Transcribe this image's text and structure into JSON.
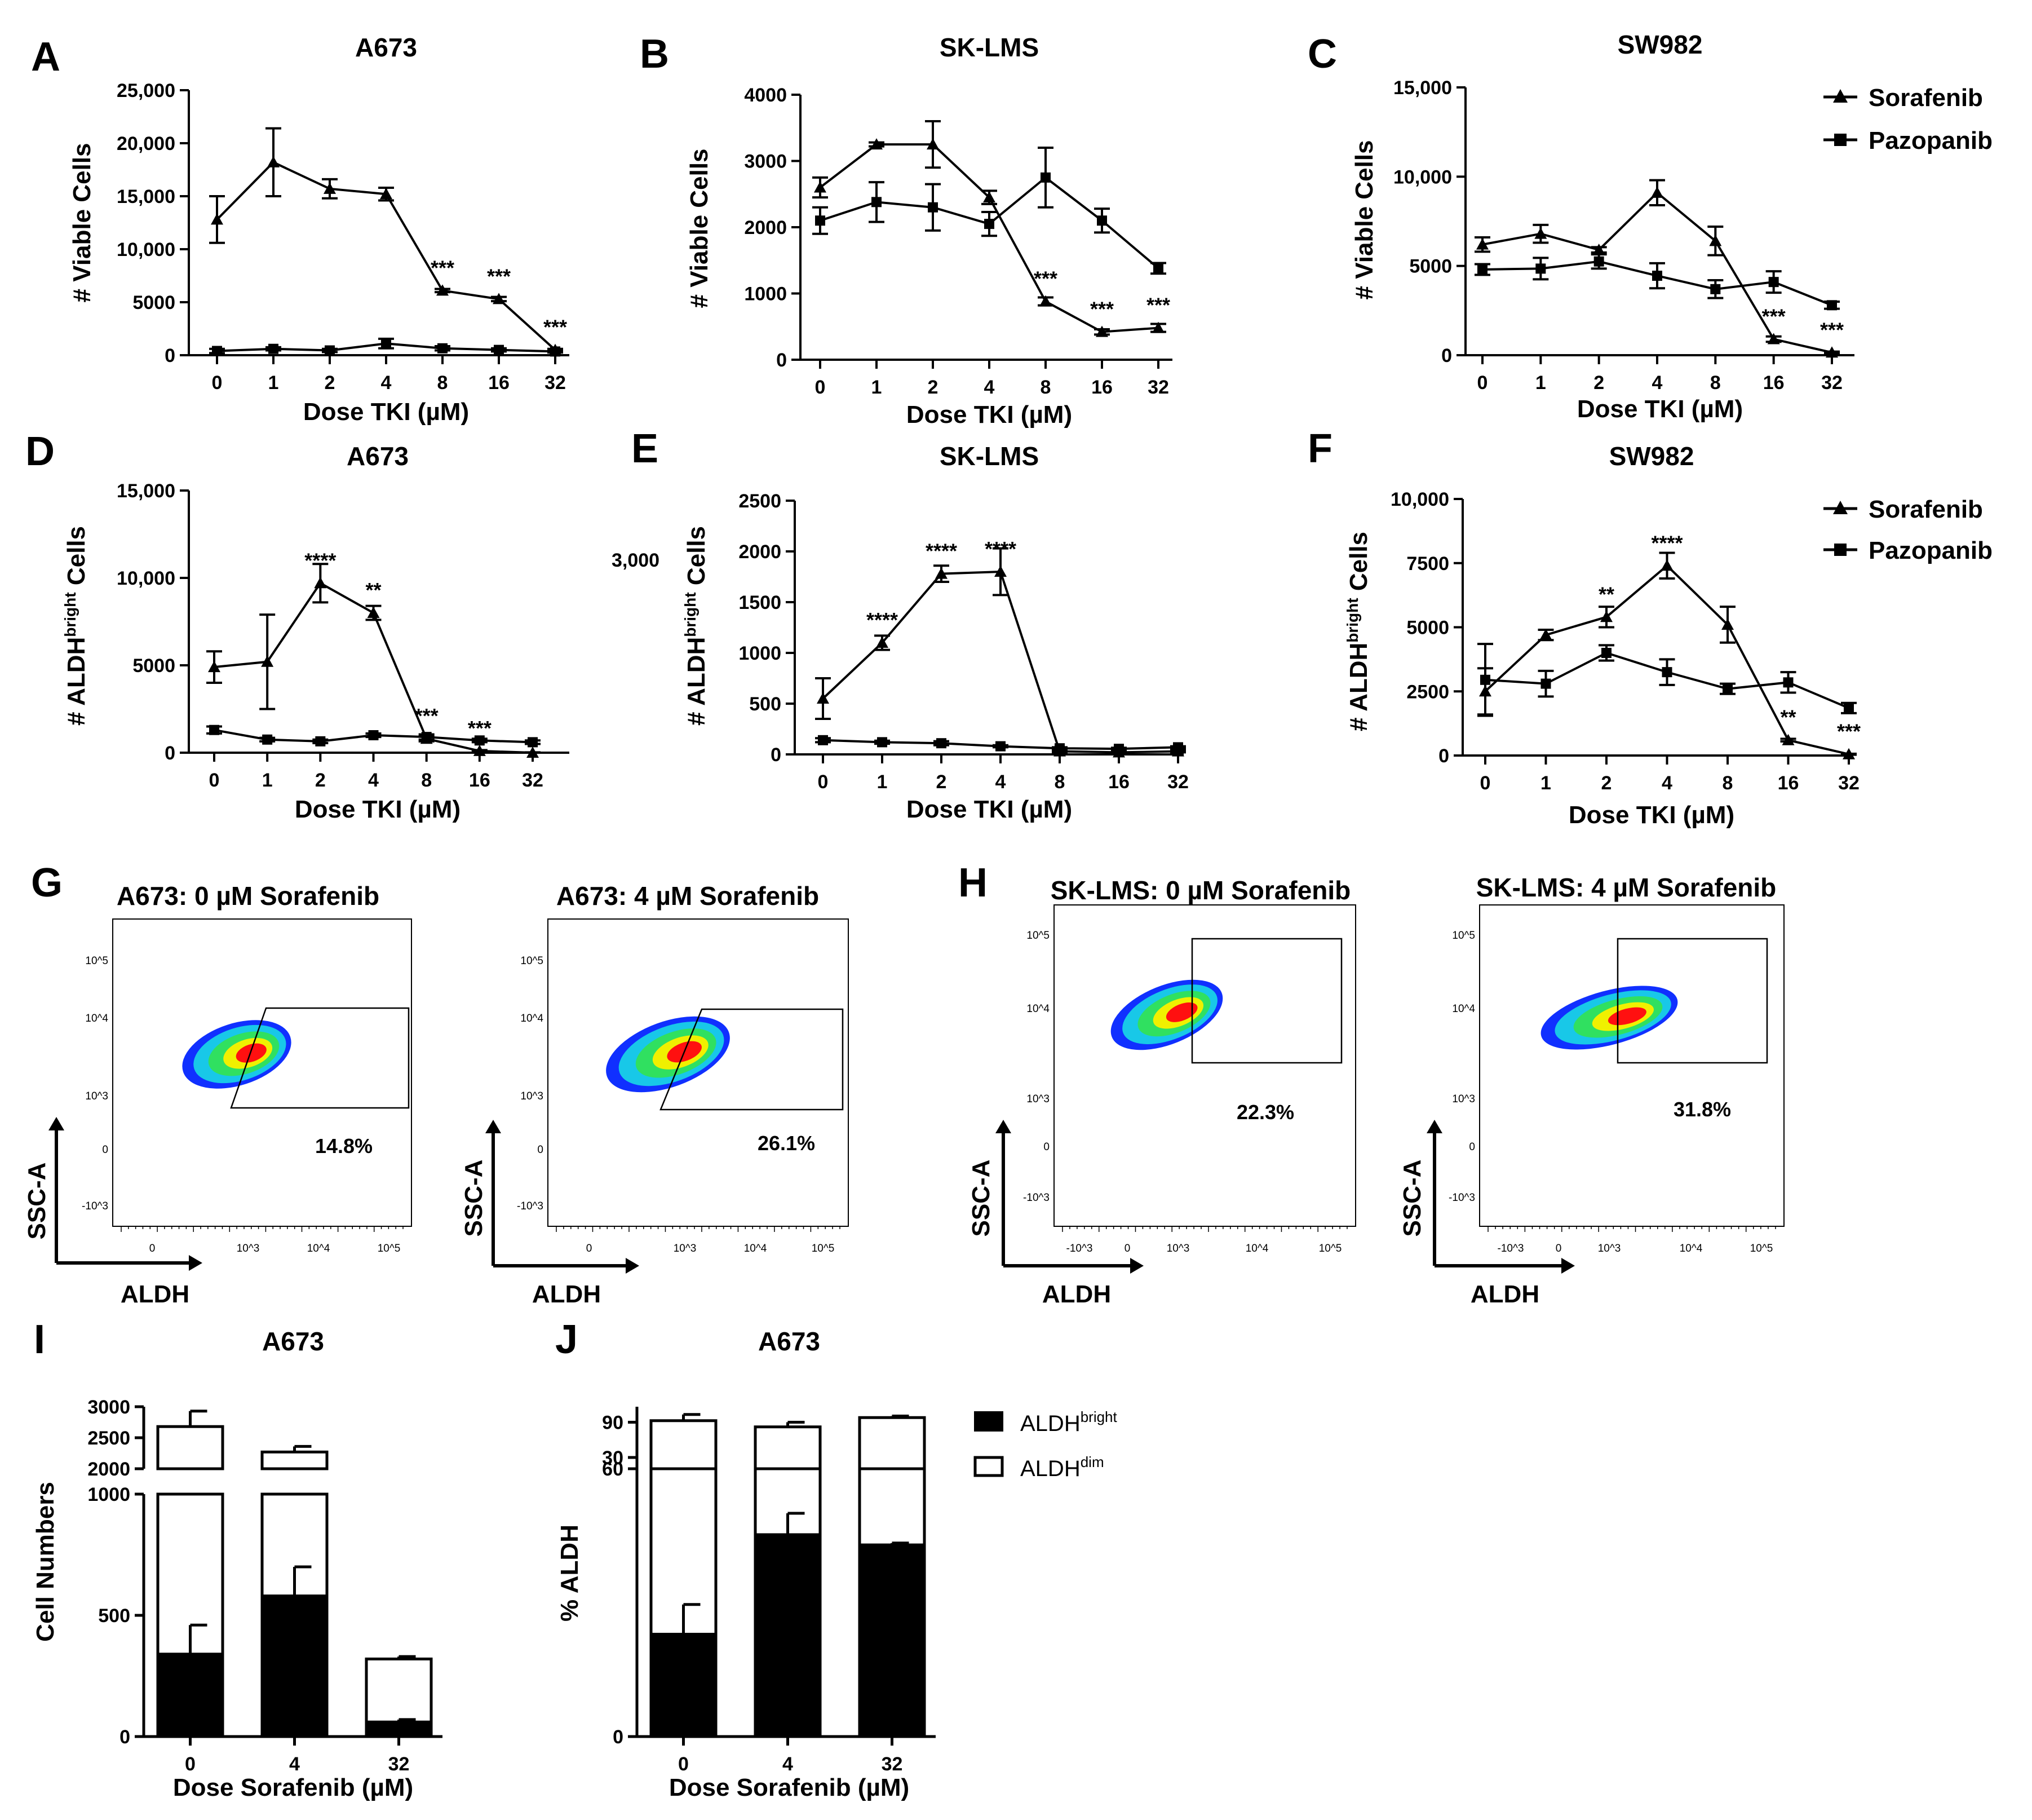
{
  "panels": {
    "A": {
      "letter": "A",
      "title": "A673",
      "xlabel": "Dose TKI (µM)",
      "ylabel": "# Viable Cells"
    },
    "B": {
      "letter": "B",
      "title": "SK-LMS",
      "xlabel": "Dose TKI (µM)",
      "ylabel": "# Viable Cells"
    },
    "C": {
      "letter": "C",
      "title": "SW982",
      "xlabel": "Dose TKI (µM)",
      "ylabel": "# Viable Cells"
    },
    "D": {
      "letter": "D",
      "title": "A673",
      "xlabel": "Dose TKI (µM)",
      "ylabel_main": "# ALDH",
      "ylabel_sup": "bright",
      "ylabel_tail": " Cells"
    },
    "E": {
      "letter": "E",
      "title": "SK-LMS",
      "xlabel": "Dose TKI (µM)",
      "ylabel_main": "# ALDH",
      "ylabel_sup": "bright",
      "ylabel_tail": " Cells",
      "stray_tick": "3,000"
    },
    "F": {
      "letter": "F",
      "title": "SW982",
      "xlabel": "Dose TKI (µM)",
      "ylabel_main": "# ALDH",
      "ylabel_sup": "bright",
      "ylabel_tail": " Cells"
    },
    "G": {
      "letter": "G"
    },
    "H": {
      "letter": "H"
    },
    "I": {
      "letter": "I",
      "title": "A673",
      "xlabel": "Dose Sorafenib (µM)",
      "ylabel": "Cell Numbers"
    },
    "J": {
      "letter": "J",
      "title": "A673",
      "xlabel": "Dose Sorafenib (µM)",
      "ylabel": "% ALDH"
    }
  },
  "legend_line": {
    "sorafenib": "Sorafenib",
    "pazopanib": "Pazopanib"
  },
  "legend_bar": {
    "bright_main": "ALDH",
    "bright_sup": "bright",
    "dim_main": "ALDH",
    "dim_sup": "dim"
  },
  "facs": {
    "g1": {
      "title": "A673: 0 µM Sorafenib",
      "pct": "14.8%"
    },
    "g2": {
      "title": "A673: 4 µM Sorafenib",
      "pct": "26.1%"
    },
    "h1": {
      "title": "SK-LMS: 0 µM Sorafenib",
      "pct": "22.3%"
    },
    "h2": {
      "title": "SK-LMS: 4 µM Sorafenib",
      "pct": "31.8%"
    },
    "xaxis": "ALDH",
    "yaxis": "SSC-A"
  },
  "colors": {
    "ink": "#000000",
    "fill_white": "#ffffff",
    "facs_blue": "#1030ff",
    "facs_cyan": "#18c8e8",
    "facs_green": "#30e060",
    "facs_yellow": "#f0f000",
    "facs_red": "#ff1010"
  },
  "chart_data": [
    {
      "id": "A",
      "type": "line",
      "categories": [
        "0",
        "1",
        "2",
        "4",
        "8",
        "16",
        "32"
      ],
      "ylim": [
        0,
        25000
      ],
      "yticks": [
        0,
        5000,
        10000,
        15000,
        20000,
        25000
      ],
      "ytick_labels": [
        "0",
        "5000",
        "10,000",
        "15,000",
        "20,000",
        "25,000"
      ],
      "series": [
        {
          "name": "Sorafenib",
          "marker": "triangle",
          "values": [
            12800,
            18200,
            15700,
            15200,
            6100,
            5300,
            500
          ],
          "err": [
            2200,
            3200,
            900,
            600,
            150,
            200,
            100
          ]
        },
        {
          "name": "Pazopanib",
          "marker": "square",
          "values": [
            400,
            600,
            450,
            1100,
            650,
            500,
            350
          ],
          "err": [
            200,
            150,
            150,
            450,
            200,
            150,
            100
          ]
        }
      ],
      "annotations": [
        {
          "x": "8",
          "y": 6100,
          "text": "***"
        },
        {
          "x": "16",
          "y": 5300,
          "text": "***"
        },
        {
          "x": "32",
          "y": 500,
          "text": "***"
        }
      ]
    },
    {
      "id": "B",
      "type": "line",
      "categories": [
        "0",
        "1",
        "2",
        "4",
        "8",
        "16",
        "32"
      ],
      "ylim": [
        0,
        4000
      ],
      "yticks": [
        0,
        1000,
        2000,
        3000,
        4000
      ],
      "ytick_labels": [
        "0",
        "1000",
        "2000",
        "3000",
        "4000"
      ],
      "series": [
        {
          "name": "Sorafenib",
          "marker": "triangle",
          "values": [
            2600,
            3250,
            3250,
            2450,
            880,
            420,
            480
          ],
          "err": [
            150,
            30,
            350,
            100,
            60,
            40,
            60
          ]
        },
        {
          "name": "Pazopanib",
          "marker": "square",
          "values": [
            2100,
            2380,
            2300,
            2050,
            2750,
            2100,
            1380
          ],
          "err": [
            200,
            300,
            350,
            180,
            450,
            180,
            80
          ]
        }
      ],
      "annotations": [
        {
          "x": "8",
          "y": 880,
          "text": "***"
        },
        {
          "x": "16",
          "y": 420,
          "text": "***"
        },
        {
          "x": "32",
          "y": 480,
          "text": "***"
        }
      ]
    },
    {
      "id": "C",
      "type": "line",
      "categories": [
        "0",
        "1",
        "2",
        "4",
        "8",
        "16",
        "32"
      ],
      "ylim": [
        0,
        15000
      ],
      "yticks": [
        0,
        5000,
        10000,
        15000
      ],
      "ytick_labels": [
        "0",
        "5000",
        "10,000",
        "15,000"
      ],
      "series": [
        {
          "name": "Sorafenib",
          "marker": "triangle",
          "values": [
            6200,
            6800,
            5900,
            9100,
            6400,
            900,
            150
          ],
          "err": [
            400,
            500,
            150,
            700,
            800,
            150,
            50
          ]
        },
        {
          "name": "Pazopanib",
          "marker": "square",
          "values": [
            4800,
            4850,
            5250,
            4450,
            3700,
            4100,
            2800
          ],
          "err": [
            300,
            600,
            400,
            700,
            500,
            600,
            200
          ]
        }
      ],
      "annotations": [
        {
          "x": "16",
          "y": 900,
          "text": "***"
        },
        {
          "x": "32",
          "y": 150,
          "text": "***"
        }
      ]
    },
    {
      "id": "D",
      "type": "line",
      "categories": [
        "0",
        "1",
        "2",
        "4",
        "8",
        "16",
        "32"
      ],
      "ylim": [
        0,
        15000
      ],
      "yticks": [
        0,
        5000,
        10000,
        15000
      ],
      "ytick_labels": [
        "0",
        "5000",
        "10,000",
        "15,000"
      ],
      "series": [
        {
          "name": "Sorafenib",
          "marker": "triangle",
          "values": [
            4900,
            5200,
            9700,
            8000,
            800,
            100,
            0
          ],
          "err": [
            900,
            2700,
            1100,
            400,
            150,
            50,
            20
          ]
        },
        {
          "name": "Pazopanib",
          "marker": "square",
          "values": [
            1300,
            750,
            650,
            1000,
            900,
            700,
            600
          ],
          "err": [
            200,
            100,
            100,
            100,
            150,
            100,
            100
          ]
        }
      ],
      "annotations": [
        {
          "x": "2",
          "y": 9700,
          "text": "****"
        },
        {
          "x": "4",
          "y": 8000,
          "text": "**"
        },
        {
          "x": "8",
          "y": 800,
          "text": "***"
        },
        {
          "x": "16",
          "y": 100,
          "text": "***"
        }
      ]
    },
    {
      "id": "E",
      "type": "line",
      "categories": [
        "0",
        "1",
        "2",
        "4",
        "8",
        "16",
        "32"
      ],
      "ylim": [
        0,
        2500
      ],
      "yticks": [
        0,
        500,
        1000,
        1500,
        2000,
        2500
      ],
      "ytick_labels": [
        "0",
        "500",
        "1000",
        "1500",
        "2000",
        "2500"
      ],
      "series": [
        {
          "name": "Sorafenib",
          "marker": "triangle",
          "values": [
            550,
            1100,
            1780,
            1800,
            30,
            20,
            30
          ],
          "err": [
            200,
            70,
            80,
            230,
            10,
            10,
            10
          ]
        },
        {
          "name": "Pazopanib",
          "marker": "square",
          "values": [
            140,
            120,
            110,
            80,
            60,
            55,
            70
          ],
          "err": [
            20,
            15,
            20,
            10,
            10,
            10,
            10
          ]
        }
      ],
      "annotations": [
        {
          "x": "1",
          "y": 1100,
          "text": "****"
        },
        {
          "x": "2",
          "y": 1780,
          "text": "****"
        },
        {
          "x": "4",
          "y": 1800,
          "text": "****"
        }
      ]
    },
    {
      "id": "F",
      "type": "line",
      "categories": [
        "0",
        "1",
        "2",
        "4",
        "8",
        "16",
        "32"
      ],
      "ylim": [
        0,
        10000
      ],
      "yticks": [
        0,
        2500,
        5000,
        7500,
        10000
      ],
      "ytick_labels": [
        "0",
        "2500",
        "5000",
        "7500",
        "10,000"
      ],
      "series": [
        {
          "name": "Sorafenib",
          "marker": "triangle",
          "values": [
            2500,
            4700,
            5400,
            7400,
            5100,
            600,
            50
          ],
          "err": [
            900,
            200,
            400,
            500,
            700,
            50,
            20
          ]
        },
        {
          "name": "Pazopanib",
          "marker": "square",
          "values": [
            2950,
            2800,
            4000,
            3250,
            2600,
            2850,
            1850
          ],
          "err": [
            1400,
            500,
            300,
            500,
            200,
            400,
            200
          ]
        }
      ],
      "annotations": [
        {
          "x": "2",
          "y": 5400,
          "text": "**"
        },
        {
          "x": "4",
          "y": 7400,
          "text": "****"
        },
        {
          "x": "16",
          "y": 600,
          "text": "**"
        },
        {
          "x": "32",
          "y": 50,
          "text": "***"
        }
      ]
    },
    {
      "id": "I",
      "type": "bar",
      "stacked": true,
      "broken_axis": true,
      "categories": [
        "0",
        "4",
        "32"
      ],
      "lower_ylim": [
        0,
        1000
      ],
      "upper_ylim": [
        2000,
        3000
      ],
      "lower_ticks": [
        "0",
        "500",
        "1000"
      ],
      "upper_ticks": [
        "2000",
        "2500",
        "3000"
      ],
      "series": [
        {
          "name": "ALDH bright",
          "values": [
            340,
            580,
            60
          ],
          "err": [
            120,
            120,
            10
          ]
        },
        {
          "name": "ALDH dim",
          "values": [
            2680,
            2270,
            320
          ],
          "err": [
            250,
            90,
            10
          ]
        }
      ]
    },
    {
      "id": "J",
      "type": "bar",
      "stacked": true,
      "broken_axis": true,
      "categories": [
        "0",
        "4",
        "32"
      ],
      "lower_ylim": [
        0,
        30
      ],
      "upper_ylim": [
        60,
        100
      ],
      "lower_ticks": [
        "0",
        "30"
      ],
      "upper_ticks": [
        "60",
        "90"
      ],
      "series": [
        {
          "name": "ALDH bright",
          "values": [
            11,
            21.7,
            20.6
          ],
          "err": [
            3.2,
            2.3,
            0.2
          ]
        },
        {
          "name": "ALDH dim",
          "values": [
            91,
            87,
            93
          ],
          "err": [
            4,
            3,
            1
          ]
        }
      ]
    }
  ]
}
